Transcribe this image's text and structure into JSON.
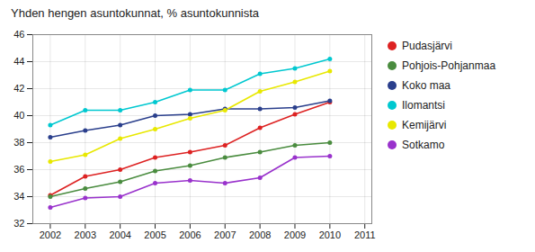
{
  "chart_data": {
    "type": "line",
    "title": "Yhden hengen asuntokunnat, % asuntokunnista",
    "x": [
      2002,
      2003,
      2004,
      2005,
      2006,
      2007,
      2008,
      2009,
      2010
    ],
    "series": [
      {
        "name": "Pudasjärvi",
        "color": "#dd2222",
        "values": [
          34.1,
          35.5,
          36.0,
          36.9,
          37.3,
          37.8,
          39.1,
          40.1,
          41.0
        ]
      },
      {
        "name": "Pohjois-Pohjanmaa",
        "color": "#4a8c3f",
        "values": [
          34.0,
          34.6,
          35.1,
          35.9,
          36.3,
          36.9,
          37.3,
          37.8,
          38.0
        ]
      },
      {
        "name": "Koko maa",
        "color": "#2a3f8c",
        "values": [
          38.4,
          38.9,
          39.3,
          40.0,
          40.1,
          40.5,
          40.5,
          40.6,
          41.1
        ]
      },
      {
        "name": "Ilomantsi",
        "color": "#00c8d0",
        "values": [
          39.3,
          40.4,
          40.4,
          41.0,
          41.9,
          41.9,
          43.1,
          43.5,
          44.2
        ]
      },
      {
        "name": "Kemijärvi",
        "color": "#e8e800",
        "values": [
          36.6,
          37.1,
          38.3,
          39.0,
          39.8,
          40.4,
          41.8,
          42.5,
          43.3
        ]
      },
      {
        "name": "Sotkamo",
        "color": "#9932cc",
        "values": [
          33.2,
          33.9,
          34.0,
          35.0,
          35.2,
          35.0,
          35.4,
          36.9,
          37.0
        ]
      }
    ],
    "ylim": [
      32,
      46
    ],
    "yticks": [
      32,
      34,
      36,
      38,
      40,
      42,
      44,
      46
    ],
    "xlim": [
      2001.5,
      2011.2
    ],
    "xticks": [
      2002,
      2003,
      2004,
      2005,
      2006,
      2007,
      2008,
      2009,
      2010,
      2011
    ],
    "grid": true,
    "marker": "circle",
    "legend": "right"
  }
}
